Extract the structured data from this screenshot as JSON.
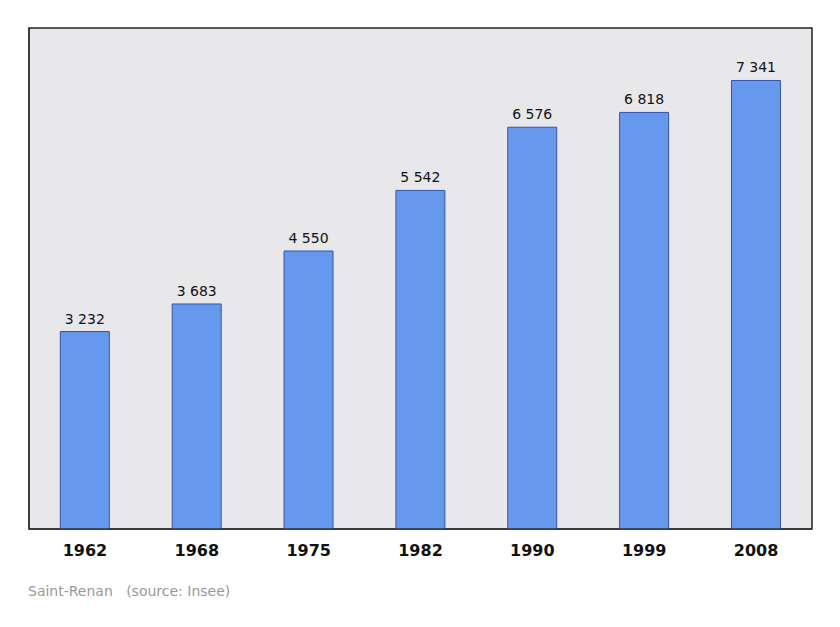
{
  "chart_data": {
    "type": "bar",
    "subtitle": "Saint-Renan   (source: Insee)",
    "categories": [
      "1962",
      "1968",
      "1975",
      "1982",
      "1990",
      "1999",
      "2008"
    ],
    "values": [
      3232,
      3683,
      4550,
      5542,
      6576,
      6818,
      7341
    ],
    "value_labels": [
      "3 232",
      "3 683",
      "4 550",
      "5 542",
      "6 576",
      "6 818",
      "7 341"
    ],
    "data_labels": true,
    "color": "#6699ee",
    "ylim": [
      0,
      8200
    ],
    "yticks": [],
    "tick_labels": "x",
    "grid": false
  }
}
